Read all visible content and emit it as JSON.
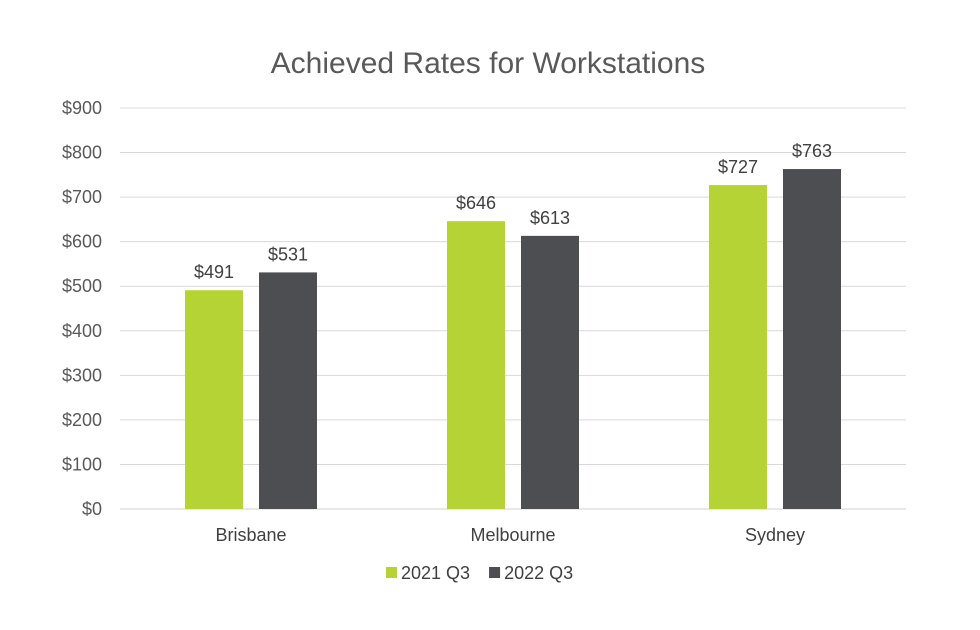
{
  "chart_data": {
    "type": "bar",
    "title": "Achieved Rates for Workstations",
    "categories": [
      "Brisbane",
      "Melbourne",
      "Sydney"
    ],
    "series": [
      {
        "name": "2021 Q3",
        "values": [
          491,
          646,
          727
        ],
        "labels": [
          "$491",
          "$646",
          "$727"
        ],
        "color": "#b5d334"
      },
      {
        "name": "2022 Q3",
        "values": [
          531,
          613,
          763
        ],
        "labels": [
          "$531",
          "$613",
          "$763"
        ],
        "color": "#4d4e52"
      }
    ],
    "ylim": [
      0,
      900
    ],
    "yticks": [
      0,
      100,
      200,
      300,
      400,
      500,
      600,
      700,
      800,
      900
    ],
    "ytick_labels": [
      "$0",
      "$100",
      "$200",
      "$300",
      "$400",
      "$500",
      "$600",
      "$700",
      "$800",
      "$900"
    ],
    "xlabel": "",
    "ylabel": "",
    "grid": true,
    "legend_position": "bottom"
  }
}
